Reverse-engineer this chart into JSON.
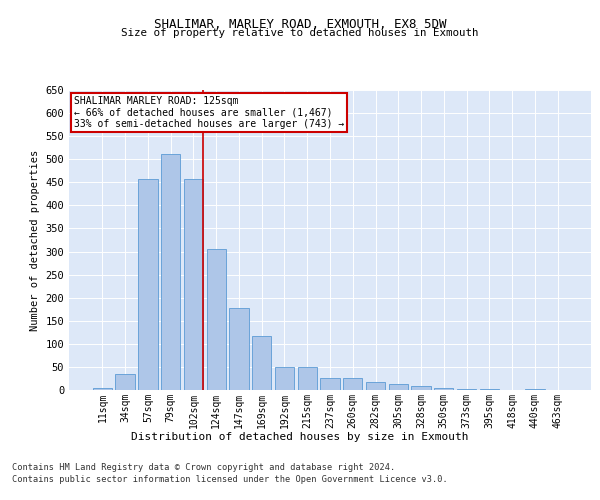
{
  "title": "SHALIMAR, MARLEY ROAD, EXMOUTH, EX8 5DW",
  "subtitle": "Size of property relative to detached houses in Exmouth",
  "xlabel": "Distribution of detached houses by size in Exmouth",
  "ylabel": "Number of detached properties",
  "categories": [
    "11sqm",
    "34sqm",
    "57sqm",
    "79sqm",
    "102sqm",
    "124sqm",
    "147sqm",
    "169sqm",
    "192sqm",
    "215sqm",
    "237sqm",
    "260sqm",
    "282sqm",
    "305sqm",
    "328sqm",
    "350sqm",
    "373sqm",
    "395sqm",
    "418sqm",
    "440sqm",
    "463sqm"
  ],
  "values": [
    5,
    35,
    457,
    512,
    458,
    305,
    178,
    118,
    50,
    50,
    27,
    27,
    18,
    13,
    8,
    5,
    2,
    2,
    1,
    2,
    1
  ],
  "bar_color": "#aec6e8",
  "bar_edge_color": "#5b9bd5",
  "marker_index": 4,
  "marker_label": "SHALIMAR MARLEY ROAD: 125sqm",
  "annotation_line1": "← 66% of detached houses are smaller (1,467)",
  "annotation_line2": "33% of semi-detached houses are larger (743) →",
  "annotation_box_color": "#ffffff",
  "annotation_box_edge_color": "#cc0000",
  "vline_color": "#cc0000",
  "ylim": [
    0,
    650
  ],
  "yticks": [
    0,
    50,
    100,
    150,
    200,
    250,
    300,
    350,
    400,
    450,
    500,
    550,
    600,
    650
  ],
  "background_color": "#dde8f8",
  "footer_line1": "Contains HM Land Registry data © Crown copyright and database right 2024.",
  "footer_line2": "Contains public sector information licensed under the Open Government Licence v3.0."
}
